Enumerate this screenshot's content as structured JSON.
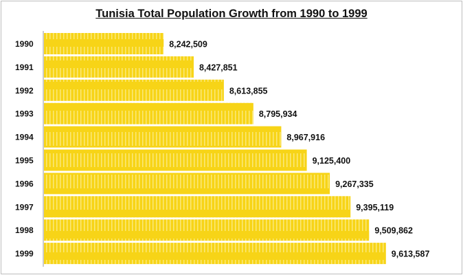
{
  "chart_data": {
    "type": "bar",
    "orientation": "horizontal",
    "title": "Tunisia Total Population Growth from 1990 to 1999",
    "categories": [
      "1990",
      "1991",
      "1992",
      "1993",
      "1994",
      "1995",
      "1996",
      "1997",
      "1998",
      "1999"
    ],
    "values": [
      8242509,
      8427851,
      8613855,
      8795934,
      8967916,
      9125400,
      9267335,
      9395119,
      9509862,
      9613587
    ],
    "value_labels": [
      "8,242,509",
      "8,427,851",
      "8,613,855",
      "8,795,934",
      "8,967,916",
      "9,125,400",
      "9,267,335",
      "9,395,119",
      "9,509,862",
      "9,613,587"
    ],
    "xlim": [
      7500000,
      10000000
    ],
    "grid": false,
    "legend": "none",
    "bar_color": "#f7d417",
    "xlabel": "",
    "ylabel": ""
  }
}
